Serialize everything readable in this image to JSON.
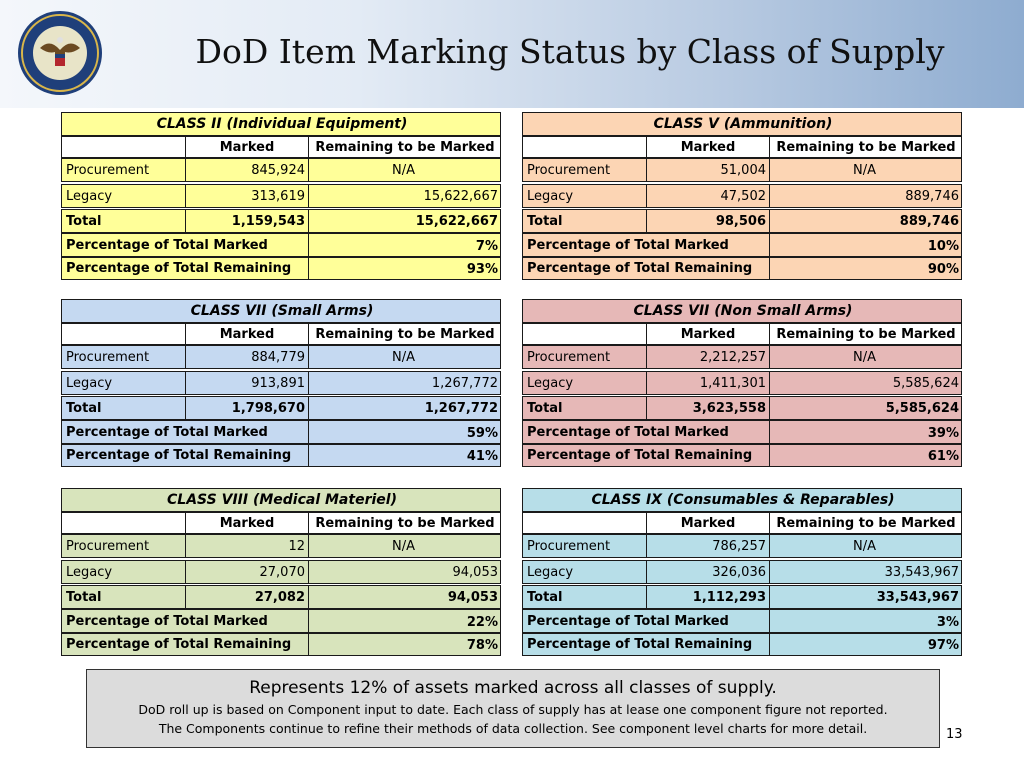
{
  "title": "DoD Item Marking Status by Class of Supply",
  "seal_text": "DEPARTMENT OF DEFENSE · UNITED STATES OF AMERICA",
  "colors": {
    "yellow": "#ffff99",
    "peach": "#fcd5b4",
    "blue": "#c5d9f1",
    "rose": "#e6b8b7",
    "green": "#d8e4bc",
    "cyan": "#b7dee8"
  },
  "tables": [
    {
      "title": "CLASS II (Individual Equipment)",
      "color": "#ffff99",
      "col_marked": "Marked",
      "col_remaining": "Remaining to be Marked",
      "procurement_label": "Procurement",
      "procurement_marked": "845,924",
      "procurement_remaining": "N/A",
      "legacy_label": "Legacy",
      "legacy_marked": "313,619",
      "legacy_remaining": "15,622,667",
      "total_label": "Total",
      "total_marked": "1,159,543",
      "total_remaining": "15,622,667",
      "pct_marked_label": "Percentage of Total Marked",
      "pct_marked": "7%",
      "pct_remaining_label": "Percentage of Total Remaining",
      "pct_remaining": "93%"
    },
    {
      "title": "CLASS V (Ammunition)",
      "color": "#fcd5b4",
      "col_marked": "Marked",
      "col_remaining": "Remaining to be Marked",
      "procurement_label": "Procurement",
      "procurement_marked": "51,004",
      "procurement_remaining": "N/A",
      "legacy_label": "Legacy",
      "legacy_marked": "47,502",
      "legacy_remaining": "889,746",
      "total_label": "Total",
      "total_marked": "98,506",
      "total_remaining": "889,746",
      "pct_marked_label": "Percentage of Total Marked",
      "pct_marked": "10%",
      "pct_remaining_label": "Percentage of Total Remaining",
      "pct_remaining": "90%"
    },
    {
      "title": "CLASS VII (Small Arms)",
      "color": "#c5d9f1",
      "col_marked": "Marked",
      "col_remaining": "Remaining to be Marked",
      "procurement_label": "Procurement",
      "procurement_marked": "884,779",
      "procurement_remaining": "N/A",
      "legacy_label": "Legacy",
      "legacy_marked": "913,891",
      "legacy_remaining": "1,267,772",
      "total_label": "Total",
      "total_marked": "1,798,670",
      "total_remaining": "1,267,772",
      "pct_marked_label": "Percentage of Total Marked",
      "pct_marked": "59%",
      "pct_remaining_label": "Percentage of Total Remaining",
      "pct_remaining": "41%"
    },
    {
      "title": "CLASS VII (Non Small Arms)",
      "color": "#e6b8b7",
      "col_marked": "Marked",
      "col_remaining": "Remaining to be Marked",
      "procurement_label": "Procurement",
      "procurement_marked": "2,212,257",
      "procurement_remaining": "N/A",
      "legacy_label": "Legacy",
      "legacy_marked": "1,411,301",
      "legacy_remaining": "5,585,624",
      "total_label": "Total",
      "total_marked": "3,623,558",
      "total_remaining": "5,585,624",
      "pct_marked_label": "Percentage of Total Marked",
      "pct_marked": "39%",
      "pct_remaining_label": "Percentage of Total Remaining",
      "pct_remaining": "61%"
    },
    {
      "title": "CLASS VIII (Medical Materiel)",
      "color": "#d8e4bc",
      "col_marked": "Marked",
      "col_remaining": "Remaining to be Marked",
      "procurement_label": "Procurement",
      "procurement_marked": "12",
      "procurement_remaining": "N/A",
      "legacy_label": "Legacy",
      "legacy_marked": "27,070",
      "legacy_remaining": "94,053",
      "total_label": "Total",
      "total_marked": "27,082",
      "total_remaining": "94,053",
      "pct_marked_label": "Percentage of Total Marked",
      "pct_marked": "22%",
      "pct_remaining_label": "Percentage of Total Remaining",
      "pct_remaining": "78%"
    },
    {
      "title": "CLASS IX (Consumables & Reparables)",
      "color": "#b7dee8",
      "col_marked": "Marked",
      "col_remaining": "Remaining to be Marked",
      "procurement_label": "Procurement",
      "procurement_marked": "786,257",
      "procurement_remaining": "N/A",
      "legacy_label": "Legacy",
      "legacy_marked": "326,036",
      "legacy_remaining": "33,543,967",
      "total_label": "Total",
      "total_marked": "1,112,293",
      "total_remaining": "33,543,967",
      "pct_marked_label": "Percentage of Total Marked",
      "pct_marked": "3%",
      "pct_remaining_label": "Percentage of Total Remaining",
      "pct_remaining": "97%"
    }
  ],
  "footer": {
    "line1": "Represents 12% of assets marked across all classes of supply.",
    "line2": "DoD  roll up is based on Component input to date.  Each class of supply has at lease one component figure not reported.",
    "line3": "The Components continue to refine their methods of data collection. See component level charts for more detail."
  },
  "page_number": "13"
}
